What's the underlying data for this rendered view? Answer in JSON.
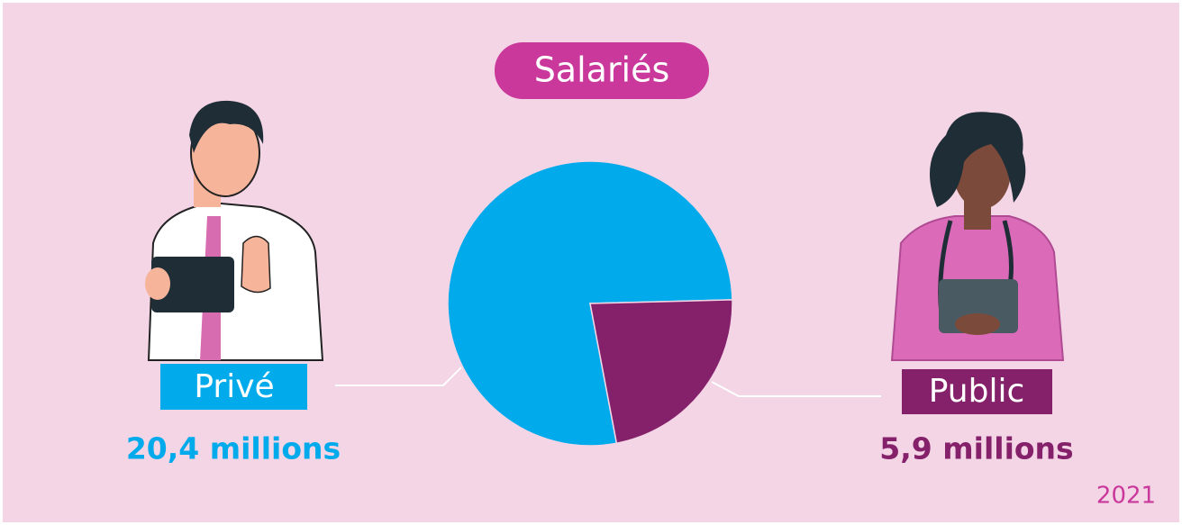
{
  "chart_data": {
    "type": "pie",
    "title": "Salariés",
    "categories": [
      "Privé",
      "Public"
    ],
    "values": [
      20.4,
      5.9
    ],
    "value_labels": [
      "20,4 millions",
      "5,9 millions"
    ],
    "colors": [
      "#00aaeb",
      "#85206a"
    ],
    "annotation": "2021"
  }
}
